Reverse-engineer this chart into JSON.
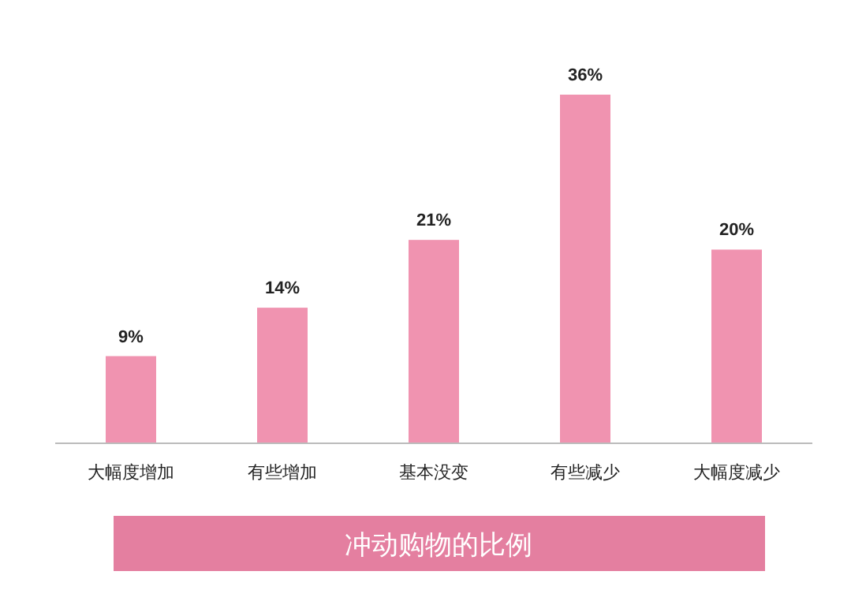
{
  "chart_data": {
    "type": "bar",
    "title": "冲动购物的比例",
    "categories": [
      "大幅度增加",
      "有些增加",
      "基本没变",
      "有些减少",
      "大幅度减少"
    ],
    "values": [
      9,
      14,
      21,
      36,
      20
    ],
    "value_labels": [
      "9%",
      "14%",
      "21%",
      "36%",
      "20%"
    ],
    "color": "#f093b0"
  }
}
